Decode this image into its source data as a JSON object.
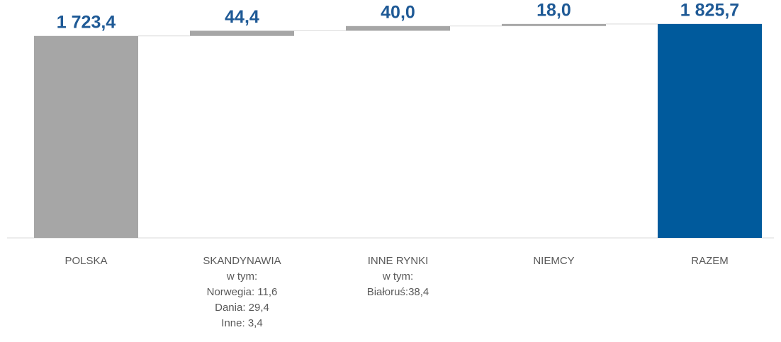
{
  "chart_data": {
    "type": "waterfall",
    "categories": [
      [
        "POLSKA"
      ],
      [
        "SKANDYNAWIA",
        "w tym:",
        "Norwegia: 11,6",
        "Dania: 29,4",
        "Inne: 3,4"
      ],
      [
        "INNE RYNKI",
        "w tym:",
        "Białoruś:38,4"
      ],
      [
        "NIEMCY"
      ],
      [
        "RAZEM"
      ]
    ],
    "values": [
      1723.4,
      44.4,
      40.0,
      18.0,
      1825.7
    ],
    "value_labels": [
      "1 723,4",
      "44,4",
      "40,0",
      "18,0",
      "1 825,7"
    ],
    "measure": [
      "absolute",
      "relative",
      "relative",
      "relative",
      "total"
    ],
    "colors": [
      "#a6a6a6",
      "#a6a6a6",
      "#a6a6a6",
      "#a6a6a6",
      "#005a9c"
    ],
    "label_color": "#1f5a96",
    "ylim": [
      0,
      2000
    ]
  }
}
